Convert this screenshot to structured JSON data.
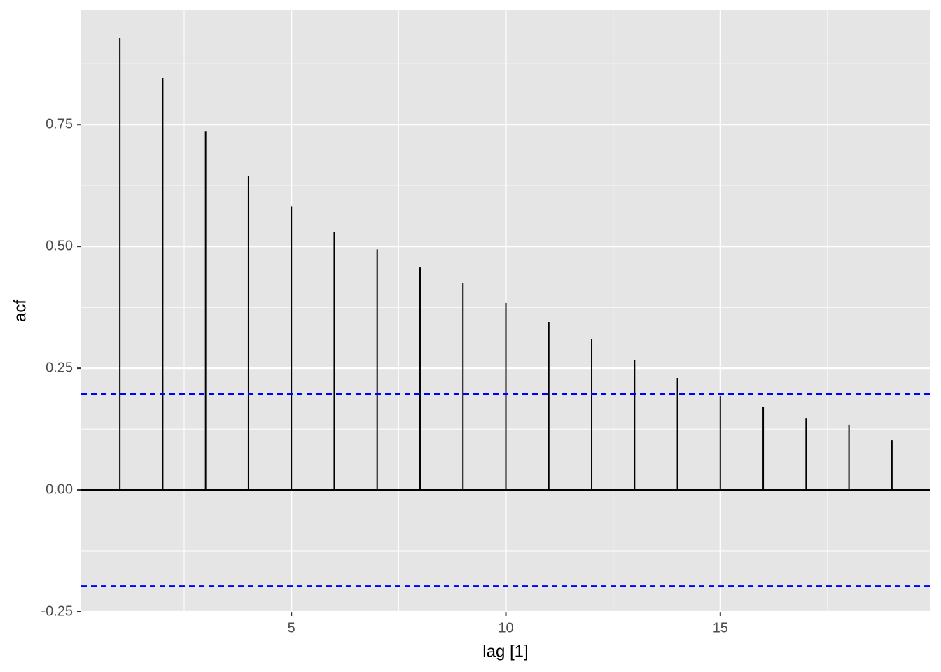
{
  "chart_data": {
    "type": "acf",
    "x_label": "lag [1]",
    "y_label": "acf",
    "x": [
      1,
      2,
      3,
      4,
      5,
      6,
      7,
      8,
      9,
      10,
      11,
      12,
      13,
      14,
      15,
      16,
      17,
      18,
      19
    ],
    "values": [
      0.928,
      0.846,
      0.737,
      0.645,
      0.583,
      0.529,
      0.494,
      0.457,
      0.424,
      0.384,
      0.345,
      0.31,
      0.267,
      0.23,
      0.193,
      0.171,
      0.148,
      0.134,
      0.102
    ],
    "color": "#000000",
    "zero_line": 0,
    "conf_limits": [
      -0.197,
      0.197
    ],
    "conf_color": "#0000ff",
    "xlim": [
      0.1,
      19.9
    ],
    "xticks": [
      5,
      10,
      15
    ],
    "x_minor_ticks": [
      2.5,
      7.5,
      12.5,
      17.5
    ],
    "ylim": [
      -0.25,
      0.986
    ],
    "yticks": [
      {
        "value": -0.25,
        "label": "-0.25"
      },
      {
        "value": 0,
        "label": "0.00"
      },
      {
        "value": 0.25,
        "label": "0.25"
      },
      {
        "value": 0.5,
        "label": "0.50"
      },
      {
        "value": 0.75,
        "label": "0.75"
      }
    ],
    "y_minor_ticks": [
      -0.125,
      0.125,
      0.375,
      0.625,
      0.875
    ],
    "grid": true,
    "panel_color": "#e5e5e5"
  }
}
